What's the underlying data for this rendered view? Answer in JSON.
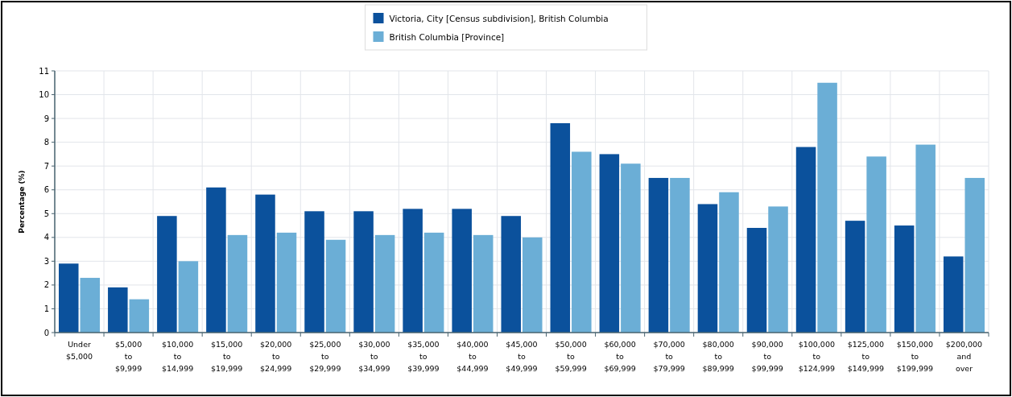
{
  "chart_data": {
    "type": "bar",
    "ylabel": "Percentage (%)",
    "categories": [
      "Under $5,000",
      "$5,000 to $9,999",
      "$10,000 to $14,999",
      "$15,000 to $19,999",
      "$20,000 to $24,999",
      "$25,000 to $29,999",
      "$30,000 to $34,999",
      "$35,000 to $39,999",
      "$40,000 to $44,999",
      "$45,000 to $49,999",
      "$50,000 to $59,999",
      "$60,000 to $69,999",
      "$70,000 to $79,999",
      "$80,000 to $89,999",
      "$90,000 to $99,999",
      "$100,000 to $124,999",
      "$125,000 to $149,999",
      "$150,000 to $199,999",
      "$200,000 and over"
    ],
    "series": [
      {
        "name": "Victoria, City [Census subdivision], British Columbia",
        "color": "#0b519c",
        "values": [
          2.9,
          1.9,
          4.9,
          6.1,
          5.8,
          5.1,
          5.1,
          5.2,
          5.2,
          4.9,
          8.8,
          7.5,
          6.5,
          5.4,
          4.4,
          7.8,
          4.7,
          4.5,
          3.2
        ]
      },
      {
        "name": "British Columbia [Province]",
        "color": "#6baed6",
        "values": [
          2.3,
          1.4,
          3.0,
          4.1,
          4.2,
          3.9,
          4.1,
          4.2,
          4.1,
          4.0,
          7.6,
          7.1,
          6.5,
          5.9,
          5.3,
          10.5,
          7.4,
          7.9,
          6.5
        ]
      }
    ],
    "ylim": [
      0,
      11
    ],
    "yticks": [
      0,
      1,
      2,
      3,
      4,
      5,
      6,
      7,
      8,
      9,
      10,
      11
    ],
    "grid": true,
    "legend": "top"
  }
}
